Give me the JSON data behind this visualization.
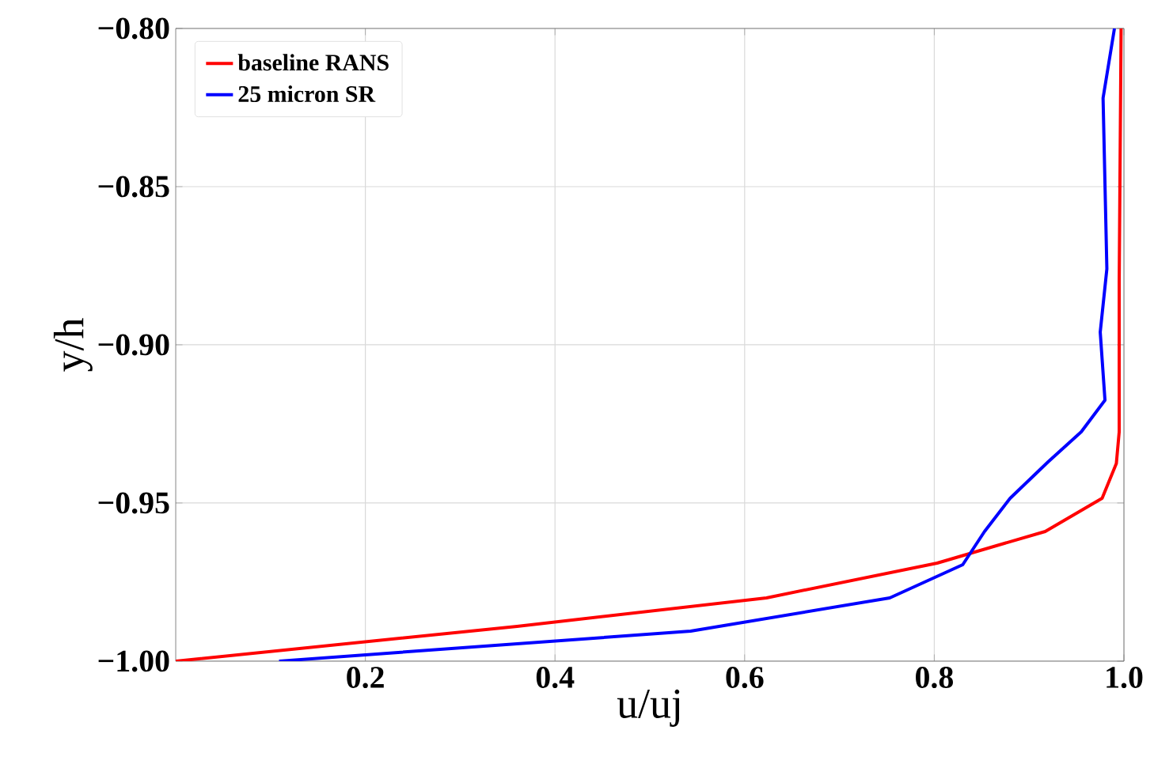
{
  "chart_data": {
    "type": "line",
    "xlabel": "u/uj",
    "ylabel": "y/h",
    "xlim": [
      0,
      1.0
    ],
    "ylim": [
      -1.0,
      -0.8
    ],
    "xticks": [
      {
        "value": 0.2,
        "label": "0.2"
      },
      {
        "value": 0.4,
        "label": "0.4"
      },
      {
        "value": 0.6,
        "label": "0.6"
      },
      {
        "value": 0.8,
        "label": "0.8"
      },
      {
        "value": 1.0,
        "label": "1.0"
      }
    ],
    "yticks": [
      {
        "value": -1.0,
        "label": "−1.00"
      },
      {
        "value": -0.95,
        "label": "−0.95"
      },
      {
        "value": -0.9,
        "label": "−0.90"
      },
      {
        "value": -0.85,
        "label": "−0.85"
      },
      {
        "value": -0.8,
        "label": "−0.80"
      }
    ],
    "grid": true,
    "legend": "top left",
    "line_style": "solid",
    "marker": "none",
    "series": [
      {
        "name": "baseline RANS",
        "color": "#ff0000",
        "x": [
          0,
          0.36,
          0.623,
          0.803,
          0.917,
          0.977,
          0.992,
          0.995,
          0.995,
          0.997
        ],
        "values": [
          -1.0,
          -0.989,
          -0.98,
          -0.969,
          -0.959,
          -0.9485,
          -0.9375,
          -0.9275,
          -0.88,
          -0.8
        ]
      },
      {
        "name": "25 micron SR",
        "color": "#0000ff",
        "x": [
          0.109,
          0.543,
          0.753,
          0.83,
          0.853,
          0.88,
          0.92,
          0.955,
          0.98,
          0.975,
          0.982,
          0.978,
          0.99
        ],
        "values": [
          -1.0,
          -0.9905,
          -0.98,
          -0.9695,
          -0.959,
          -0.9485,
          -0.937,
          -0.9275,
          -0.9175,
          -0.896,
          -0.876,
          -0.822,
          -0.8
        ]
      }
    ]
  }
}
